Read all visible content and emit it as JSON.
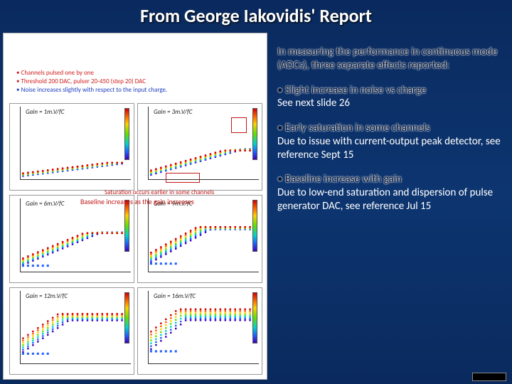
{
  "title": "From George Iakovidis' Report",
  "notes": {
    "line1": "Channels pulsed one by one",
    "line2": "Threshold 200 DAC, pulser 20-450 (step 20) DAC",
    "line3": "Noise increases slightly with respect to the input charge."
  },
  "annotations": {
    "saturation": "Saturation occurs earlier in some channels",
    "baseline": "Baseline increases as the gain increases"
  },
  "charts": [
    {
      "gain": "Gain = 1m.V/fC",
      "baseline": 0.05,
      "slope": 0.18,
      "sat": 1.0,
      "flat": false
    },
    {
      "gain": "Gain = 3m.V/fC",
      "baseline": 0.08,
      "slope": 0.4,
      "sat": 0.85,
      "flat": false
    },
    {
      "gain": "Gain = 6m.V/fC",
      "baseline": 0.12,
      "slope": 0.6,
      "sat": 0.72,
      "flat": true
    },
    {
      "gain": "Gain = 9m.V/fC",
      "baseline": 0.18,
      "slope": 0.8,
      "sat": 0.55,
      "flat": true
    },
    {
      "gain": "Gain = 12m.V/fC",
      "baseline": 0.25,
      "slope": 1.0,
      "sat": 0.42,
      "flat": true
    },
    {
      "gain": "Gain = 16m.V/fC",
      "baseline": 0.32,
      "slope": 1.2,
      "sat": 0.32,
      "flat": true
    }
  ],
  "chart_style": {
    "xlim": [
      0,
      1
    ],
    "ylim": [
      0,
      1
    ],
    "marker_size": 2,
    "rainbow": [
      "#4000c0",
      "#2060ff",
      "#00d0d0",
      "#60e000",
      "#ffd000",
      "#ff6000",
      "#d00000"
    ],
    "axis_color": "#333333",
    "border_color": "#999999",
    "background": "#ffffff",
    "label_fontsize": 9
  },
  "right": {
    "intro": "In measuring the performance in continuous mode (ADCs), three separate effects reported:",
    "p1_head": "• Slight increase in noise vs charge",
    "p1_body": "See next slide 26",
    "p2_head": "• Early saturation in some channels",
    "p2_body": "Due to issue with current-output peak detector, see reference Sept 15",
    "p3_head": "• Baseline increase with gain",
    "p3_body": "Due to low-end saturation and dispersion of pulse generator DAC, see reference Jul 15"
  },
  "slide": {
    "background_top": "#0a2a5e",
    "background_mid": "#0d3570",
    "title_color": "#ffffff",
    "title_fontsize": 26,
    "body_fontsize": 15
  }
}
